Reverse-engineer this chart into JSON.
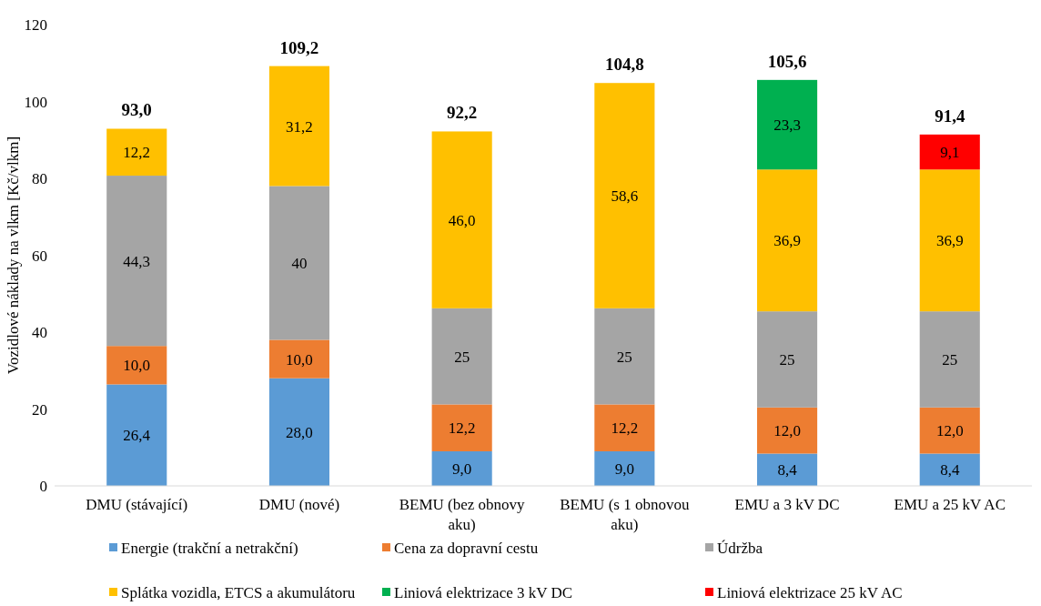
{
  "chart_data": {
    "type": "bar",
    "stacked": true,
    "ylabel": "Vozidlové náklady na vlkm [Kč/vlkm]",
    "categories": [
      "DMU (stávající)",
      "DMU (nové)",
      "BEMU (bez obnovy aku)",
      "BEMU (s 1 obnovou aku)",
      "EMU a 3 kV DC",
      "EMU a 25 kV AC"
    ],
    "series": [
      {
        "name": "Energie (trakční a netrakční)",
        "color": "#5b9bd5",
        "values": [
          26.4,
          28.0,
          9.0,
          9.0,
          8.4,
          8.4
        ],
        "value_labels": [
          "26,4",
          "28,0",
          "9,0",
          "9,0",
          "8,4",
          "8,4"
        ]
      },
      {
        "name": "Cena za dopravní cestu",
        "color": "#ed7d31",
        "values": [
          10.0,
          10.0,
          12.2,
          12.2,
          12.0,
          12.0
        ],
        "value_labels": [
          "10,0",
          "10,0",
          "12,2",
          "12,2",
          "12,0",
          "12,0"
        ]
      },
      {
        "name": "Údržba",
        "color": "#a5a5a5",
        "values": [
          44.3,
          40,
          25,
          25,
          25,
          25
        ],
        "value_labels": [
          "44,3",
          "40",
          "25",
          "25",
          "25",
          "25"
        ]
      },
      {
        "name": "Splátka vozidla, ETCS a akumulátoru",
        "color": "#ffc000",
        "values": [
          12.2,
          31.2,
          46.0,
          58.6,
          36.9,
          36.9
        ],
        "value_labels": [
          "12,2",
          "31,2",
          "46,0",
          "58,6",
          "36,9",
          "36,9"
        ]
      },
      {
        "name": "Liniová elektrizace 3 kV DC",
        "color": "#00b050",
        "values": [
          null,
          null,
          null,
          null,
          23.3,
          null
        ],
        "value_labels": [
          null,
          null,
          null,
          null,
          "23,3",
          null
        ]
      },
      {
        "name": "Liniová elektrizace 25 kV AC",
        "color": "#ff0000",
        "values": [
          null,
          null,
          null,
          null,
          null,
          9.1
        ],
        "value_labels": [
          null,
          null,
          null,
          null,
          null,
          "9,1"
        ]
      }
    ],
    "totals": [
      "93,0",
      "109,2",
      "92,2",
      "104,8",
      "105,6",
      "91,4"
    ],
    "ylim": [
      0,
      120
    ],
    "yticks": [
      0,
      20,
      40,
      60,
      80,
      100,
      120
    ],
    "grid": false,
    "legend": "bottom"
  }
}
